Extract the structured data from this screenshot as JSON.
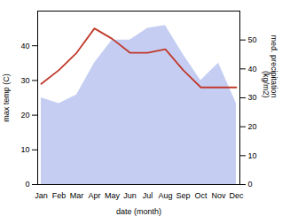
{
  "chart_data": {
    "type": "line",
    "xlabel": "date (month)",
    "ylabel": "max temp (C)",
    "y2label": "med. precipitation\n(kg/m2)",
    "categories": [
      "Jan",
      "Feb",
      "Mar",
      "Apr",
      "May",
      "Jun",
      "Jul",
      "Aug",
      "Sep",
      "Oct",
      "Nov",
      "Dec"
    ],
    "series": [
      {
        "type": "area",
        "axis": "y2",
        "color": "#bbc5f0",
        "values": [
          30,
          28,
          31,
          42,
          50,
          50,
          54,
          55,
          45,
          36,
          42,
          28
        ]
      },
      {
        "type": "line",
        "color": "#c0392b",
        "values": [
          29,
          33,
          38,
          45,
          42,
          38,
          38,
          39,
          33,
          28,
          28,
          28
        ]
      }
    ],
    "ylim": [
      0,
      50
    ],
    "yticks": [
      0,
      10,
      20,
      30,
      40
    ],
    "y2lim": [
      0,
      60
    ],
    "y2ticks": [
      0,
      10,
      20,
      30,
      40,
      50
    ],
    "grid": false
  }
}
